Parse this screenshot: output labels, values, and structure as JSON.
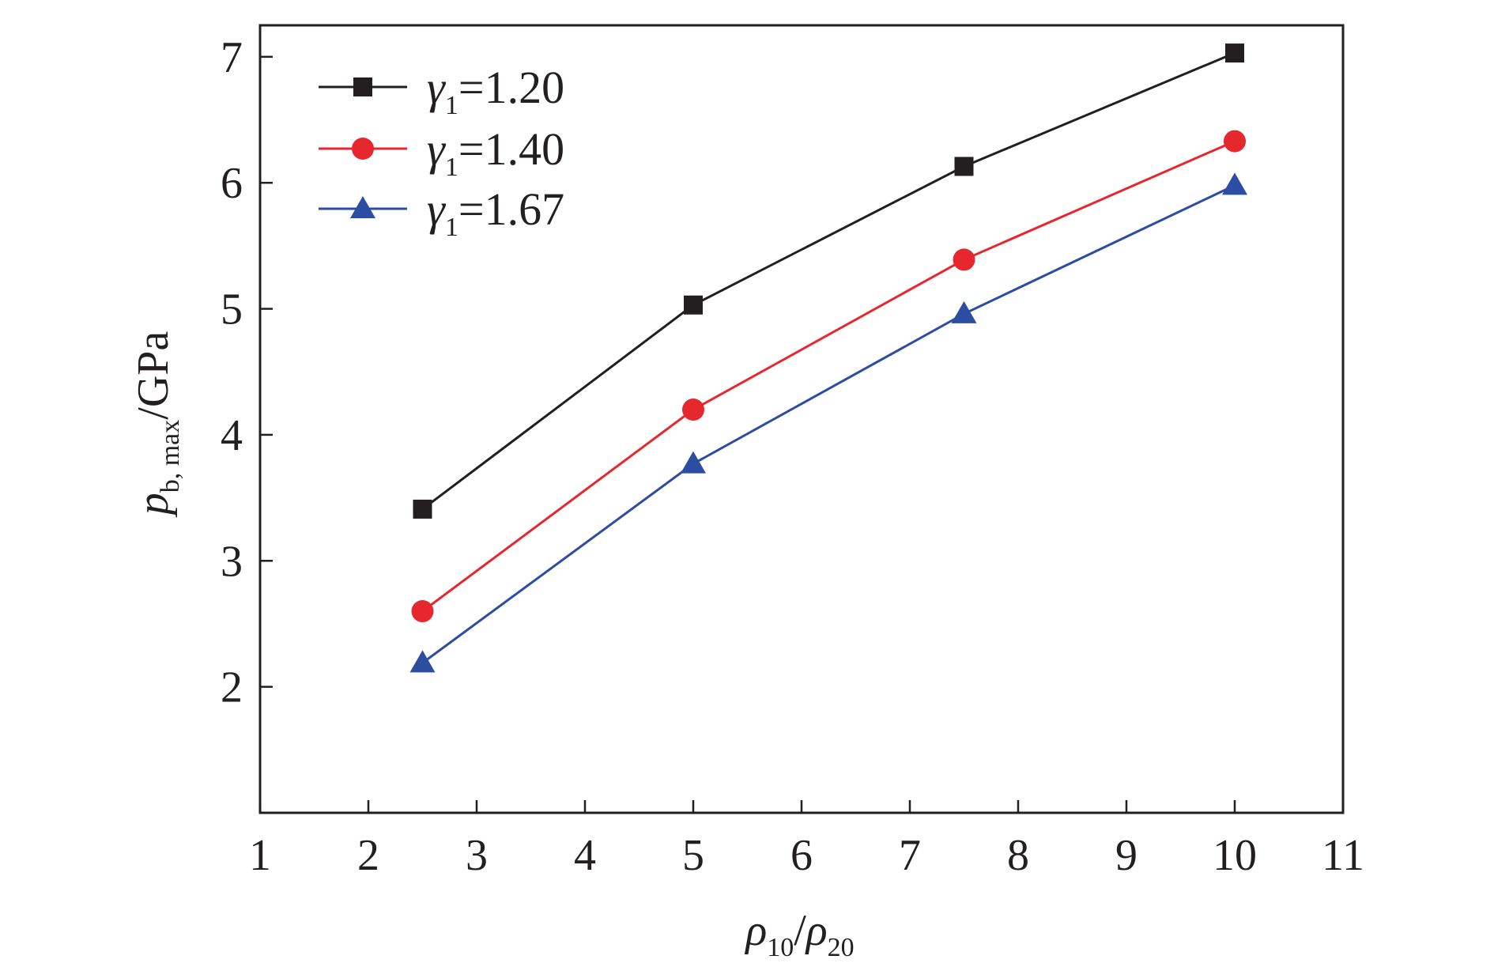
{
  "chart_data": {
    "type": "line",
    "xlabel": {
      "base1": "ρ",
      "sub1": "10",
      "sep": "/",
      "base2": "ρ",
      "sub2": "20"
    },
    "ylabel": {
      "base": "p",
      "sub": "b, max",
      "unit": "/GPa"
    },
    "xlim": [
      1,
      11
    ],
    "ylim": [
      1,
      7.25
    ],
    "xticks": [
      "1",
      "2",
      "3",
      "4",
      "5",
      "6",
      "7",
      "8",
      "9",
      "10",
      "11"
    ],
    "yticks": [
      "2",
      "3",
      "4",
      "5",
      "6",
      "7"
    ],
    "grid": false,
    "legend_position": "top-left",
    "x": [
      2.5,
      5,
      7.5,
      10
    ],
    "series": [
      {
        "name_symbol": "γ",
        "name_sub": "1",
        "name_value": "=1.20",
        "marker": "square",
        "color": "#231f20",
        "values": [
          3.41,
          5.03,
          6.13,
          7.03
        ]
      },
      {
        "name_symbol": "γ",
        "name_sub": "1",
        "name_value": "=1.40",
        "marker": "circle",
        "color": "#e6282e",
        "values": [
          2.6,
          4.2,
          5.39,
          6.33
        ]
      },
      {
        "name_symbol": "γ",
        "name_sub": "1",
        "name_value": "=1.67",
        "marker": "triangle",
        "color": "#2b4ea3",
        "values": [
          2.19,
          3.77,
          4.96,
          5.98
        ]
      }
    ]
  }
}
